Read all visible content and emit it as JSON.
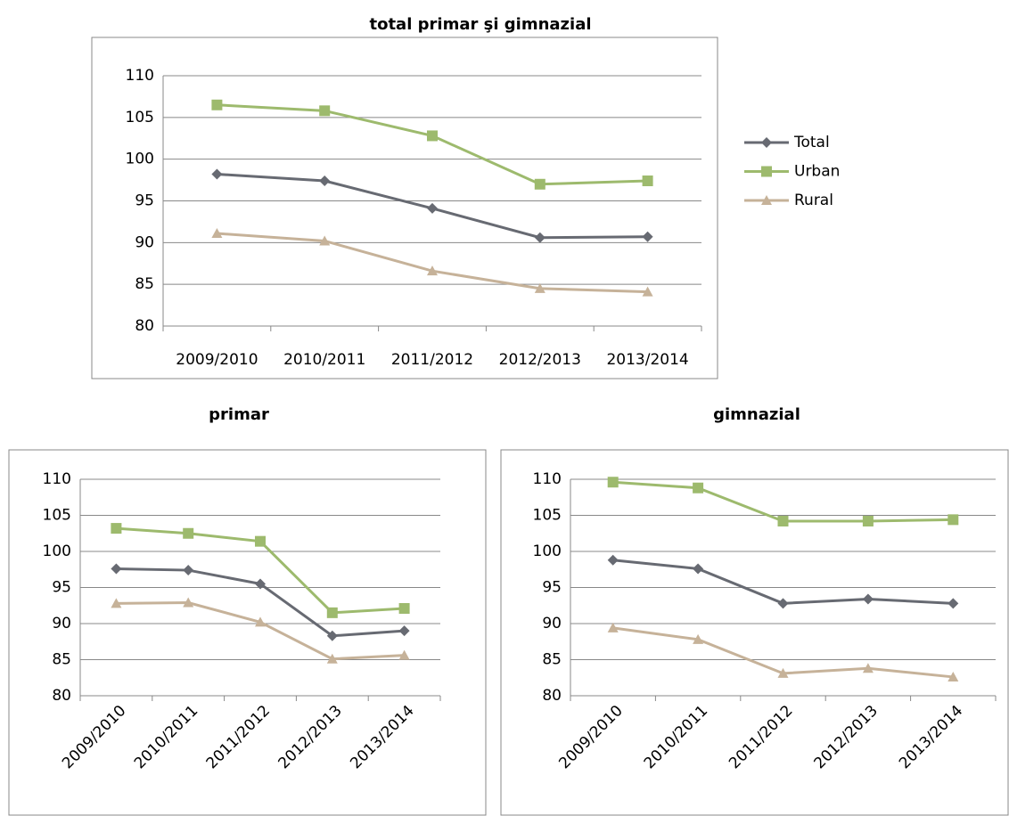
{
  "chart_data": [
    {
      "type": "line",
      "title": "total primar şi gimnazial",
      "categories": [
        "2009/2010",
        "2010/2011",
        "2011/2012",
        "2012/2013",
        "2013/2014"
      ],
      "series": [
        {
          "name": "Total",
          "color": "#676a72",
          "marker": "diamond",
          "values": [
            98.2,
            97.4,
            94.1,
            90.6,
            90.7
          ]
        },
        {
          "name": "Urban",
          "color": "#9dba6d",
          "marker": "square",
          "values": [
            106.5,
            105.8,
            102.8,
            97.0,
            97.4
          ]
        },
        {
          "name": "Rural",
          "color": "#c6b299",
          "marker": "triangle",
          "values": [
            91.1,
            90.2,
            86.6,
            84.5,
            84.1
          ]
        }
      ],
      "ylim": [
        80,
        110
      ],
      "yticks": [
        80,
        85,
        90,
        95,
        100,
        105,
        110
      ],
      "grid": true,
      "legend": "right"
    },
    {
      "type": "line",
      "title": "primar",
      "categories": [
        "2009/2010",
        "2010/2011",
        "2011/2012",
        "2012/2013",
        "2013/2014"
      ],
      "series": [
        {
          "color": "#676a72",
          "marker": "diamond",
          "values": [
            97.6,
            97.4,
            95.5,
            88.3,
            89.0
          ]
        },
        {
          "color": "#9dba6d",
          "marker": "square",
          "values": [
            103.2,
            102.5,
            101.4,
            91.5,
            92.1
          ]
        },
        {
          "color": "#c6b299",
          "marker": "triangle",
          "values": [
            92.8,
            92.9,
            90.2,
            85.1,
            85.6
          ]
        }
      ],
      "ylim": [
        80,
        110
      ],
      "yticks": [
        80,
        85,
        90,
        95,
        100,
        105,
        110
      ],
      "grid": true
    },
    {
      "type": "line",
      "title": "gimnazial",
      "categories": [
        "2009/2010",
        "2010/2011",
        "2011/2012",
        "2012/2013",
        "2013/2014"
      ],
      "series": [
        {
          "color": "#676a72",
          "marker": "diamond",
          "values": [
            98.8,
            97.6,
            92.8,
            93.4,
            92.8
          ]
        },
        {
          "color": "#9dba6d",
          "marker": "square",
          "values": [
            109.6,
            108.8,
            104.2,
            104.2,
            104.4
          ]
        },
        {
          "color": "#c6b299",
          "marker": "triangle",
          "values": [
            89.4,
            87.8,
            83.1,
            83.8,
            82.6
          ]
        }
      ],
      "ylim": [
        80,
        110
      ],
      "yticks": [
        80,
        85,
        90,
        95,
        100,
        105,
        110
      ],
      "grid": true
    }
  ]
}
